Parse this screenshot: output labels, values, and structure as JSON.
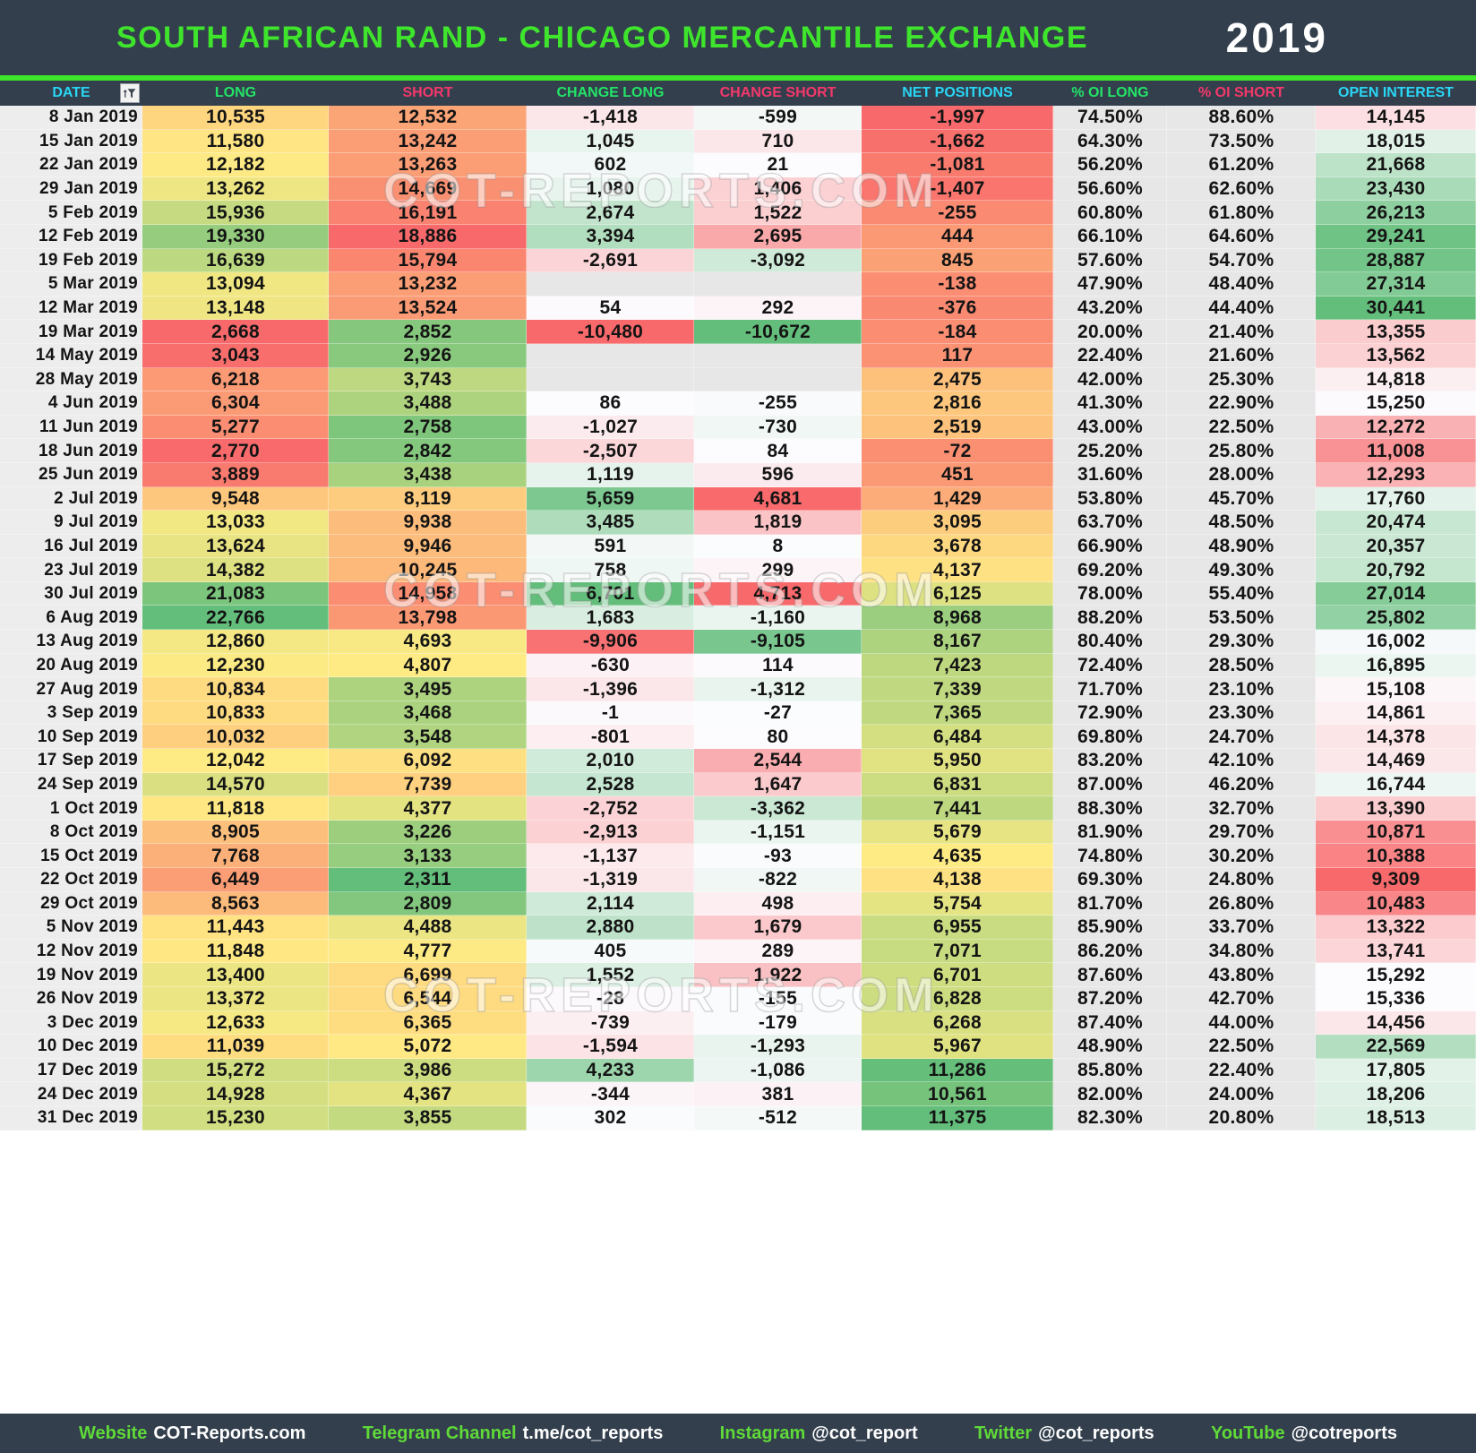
{
  "header": {
    "title": "SOUTH AFRICAN RAND - CHICAGO MERCANTILE EXCHANGE",
    "year": "2019"
  },
  "chart_data": {
    "type": "table",
    "title": "SOUTH AFRICAN RAND - CHICAGO MERCANTILE EXCHANGE",
    "year": "2019",
    "columns": [
      "DATE",
      "LONG",
      "SHORT",
      "CHANGE LONG",
      "CHANGE SHORT",
      "NET POSITIONS",
      "% OI LONG",
      "% OI SHORT",
      "OPEN INTEREST"
    ],
    "rows": [
      [
        "8 Jan 2019",
        "10,535",
        "12,532",
        "-1,418",
        "-599",
        "-1,997",
        "74.50%",
        "88.60%",
        "14,145"
      ],
      [
        "15 Jan 2019",
        "11,580",
        "13,242",
        "1,045",
        "710",
        "-1,662",
        "64.30%",
        "73.50%",
        "18,015"
      ],
      [
        "22 Jan 2019",
        "12,182",
        "13,263",
        "602",
        "21",
        "-1,081",
        "56.20%",
        "61.20%",
        "21,668"
      ],
      [
        "29 Jan 2019",
        "13,262",
        "14,669",
        "1,080",
        "1,406",
        "-1,407",
        "56.60%",
        "62.60%",
        "23,430"
      ],
      [
        "5 Feb 2019",
        "15,936",
        "16,191",
        "2,674",
        "1,522",
        "-255",
        "60.80%",
        "61.80%",
        "26,213"
      ],
      [
        "12 Feb 2019",
        "19,330",
        "18,886",
        "3,394",
        "2,695",
        "444",
        "66.10%",
        "64.60%",
        "29,241"
      ],
      [
        "19 Feb 2019",
        "16,639",
        "15,794",
        "-2,691",
        "-3,092",
        "845",
        "57.60%",
        "54.70%",
        "28,887"
      ],
      [
        "5 Mar 2019",
        "13,094",
        "13,232",
        "",
        "",
        "-138",
        "47.90%",
        "48.40%",
        "27,314"
      ],
      [
        "12 Mar 2019",
        "13,148",
        "13,524",
        "54",
        "292",
        "-376",
        "43.20%",
        "44.40%",
        "30,441"
      ],
      [
        "19 Mar 2019",
        "2,668",
        "2,852",
        "-10,480",
        "-10,672",
        "-184",
        "20.00%",
        "21.40%",
        "13,355"
      ],
      [
        "14 May 2019",
        "3,043",
        "2,926",
        "",
        "",
        "117",
        "22.40%",
        "21.60%",
        "13,562"
      ],
      [
        "28 May 2019",
        "6,218",
        "3,743",
        "",
        "",
        "2,475",
        "42.00%",
        "25.30%",
        "14,818"
      ],
      [
        "4 Jun 2019",
        "6,304",
        "3,488",
        "86",
        "-255",
        "2,816",
        "41.30%",
        "22.90%",
        "15,250"
      ],
      [
        "11 Jun 2019",
        "5,277",
        "2,758",
        "-1,027",
        "-730",
        "2,519",
        "43.00%",
        "22.50%",
        "12,272"
      ],
      [
        "18 Jun 2019",
        "2,770",
        "2,842",
        "-2,507",
        "84",
        "-72",
        "25.20%",
        "25.80%",
        "11,008"
      ],
      [
        "25 Jun 2019",
        "3,889",
        "3,438",
        "1,119",
        "596",
        "451",
        "31.60%",
        "28.00%",
        "12,293"
      ],
      [
        "2 Jul 2019",
        "9,548",
        "8,119",
        "5,659",
        "4,681",
        "1,429",
        "53.80%",
        "45.70%",
        "17,760"
      ],
      [
        "9 Jul 2019",
        "13,033",
        "9,938",
        "3,485",
        "1,819",
        "3,095",
        "63.70%",
        "48.50%",
        "20,474"
      ],
      [
        "16 Jul 2019",
        "13,624",
        "9,946",
        "591",
        "8",
        "3,678",
        "66.90%",
        "48.90%",
        "20,357"
      ],
      [
        "23 Jul 2019",
        "14,382",
        "10,245",
        "758",
        "299",
        "4,137",
        "69.20%",
        "49.30%",
        "20,792"
      ],
      [
        "30 Jul 2019",
        "21,083",
        "14,958",
        "6,701",
        "4,713",
        "6,125",
        "78.00%",
        "55.40%",
        "27,014"
      ],
      [
        "6 Aug 2019",
        "22,766",
        "13,798",
        "1,683",
        "-1,160",
        "8,968",
        "88.20%",
        "53.50%",
        "25,802"
      ],
      [
        "13 Aug 2019",
        "12,860",
        "4,693",
        "-9,906",
        "-9,105",
        "8,167",
        "80.40%",
        "29.30%",
        "16,002"
      ],
      [
        "20 Aug 2019",
        "12,230",
        "4,807",
        "-630",
        "114",
        "7,423",
        "72.40%",
        "28.50%",
        "16,895"
      ],
      [
        "27 Aug 2019",
        "10,834",
        "3,495",
        "-1,396",
        "-1,312",
        "7,339",
        "71.70%",
        "23.10%",
        "15,108"
      ],
      [
        "3 Sep 2019",
        "10,833",
        "3,468",
        "-1",
        "-27",
        "7,365",
        "72.90%",
        "23.30%",
        "14,861"
      ],
      [
        "10 Sep 2019",
        "10,032",
        "3,548",
        "-801",
        "80",
        "6,484",
        "69.80%",
        "24.70%",
        "14,378"
      ],
      [
        "17 Sep 2019",
        "12,042",
        "6,092",
        "2,010",
        "2,544",
        "5,950",
        "83.20%",
        "42.10%",
        "14,469"
      ],
      [
        "24 Sep 2019",
        "14,570",
        "7,739",
        "2,528",
        "1,647",
        "6,831",
        "87.00%",
        "46.20%",
        "16,744"
      ],
      [
        "1 Oct 2019",
        "11,818",
        "4,377",
        "-2,752",
        "-3,362",
        "7,441",
        "88.30%",
        "32.70%",
        "13,390"
      ],
      [
        "8 Oct 2019",
        "8,905",
        "3,226",
        "-2,913",
        "-1,151",
        "5,679",
        "81.90%",
        "29.70%",
        "10,871"
      ],
      [
        "15 Oct 2019",
        "7,768",
        "3,133",
        "-1,137",
        "-93",
        "4,635",
        "74.80%",
        "30.20%",
        "10,388"
      ],
      [
        "22 Oct 2019",
        "6,449",
        "2,311",
        "-1,319",
        "-822",
        "4,138",
        "69.30%",
        "24.80%",
        "9,309"
      ],
      [
        "29 Oct 2019",
        "8,563",
        "2,809",
        "2,114",
        "498",
        "5,754",
        "81.70%",
        "26.80%",
        "10,483"
      ],
      [
        "5 Nov 2019",
        "11,443",
        "4,488",
        "2,880",
        "1,679",
        "6,955",
        "85.90%",
        "33.70%",
        "13,322"
      ],
      [
        "12 Nov 2019",
        "11,848",
        "4,777",
        "405",
        "289",
        "7,071",
        "86.20%",
        "34.80%",
        "13,741"
      ],
      [
        "19 Nov 2019",
        "13,400",
        "6,699",
        "1,552",
        "1,922",
        "6,701",
        "87.60%",
        "43.80%",
        "15,292"
      ],
      [
        "26 Nov 2019",
        "13,372",
        "6,544",
        "-28",
        "-155",
        "6,828",
        "87.20%",
        "42.70%",
        "15,336"
      ],
      [
        "3 Dec 2019",
        "12,633",
        "6,365",
        "-739",
        "-179",
        "6,268",
        "87.40%",
        "44.00%",
        "14,456"
      ],
      [
        "10 Dec 2019",
        "11,039",
        "5,072",
        "-1,594",
        "-1,293",
        "5,967",
        "48.90%",
        "22.50%",
        "22,569"
      ],
      [
        "17 Dec 2019",
        "15,272",
        "3,986",
        "4,233",
        "-1,086",
        "11,286",
        "85.80%",
        "22.40%",
        "17,805"
      ],
      [
        "24 Dec 2019",
        "14,928",
        "4,367",
        "-344",
        "381",
        "10,561",
        "82.00%",
        "24.00%",
        "18,206"
      ],
      [
        "31 Dec 2019",
        "15,230",
        "3,855",
        "302",
        "-512",
        "11,375",
        "82.30%",
        "20.80%",
        "18,513"
      ]
    ],
    "legend_position": "none",
    "grid": false
  },
  "heatmap": {
    "column_keys": [
      "date",
      "long",
      "short",
      "change_long",
      "change_short",
      "net_positions",
      "oi_long_pct",
      "oi_short_pct",
      "open_interest"
    ],
    "column_scales": [
      null,
      "ryg",
      "gyr",
      "rwg",
      "gwr",
      "ryg",
      null,
      null,
      "rwg"
    ],
    "column_label_colors": [
      "cyan",
      "green",
      "pink",
      "green",
      "pink",
      "cyan",
      "green",
      "pink",
      "cyan"
    ],
    "midpoint": "median"
  },
  "watermark": {
    "text": "COT-REPORTS.COM"
  },
  "footer": {
    "items": [
      {
        "label": "Website",
        "value": "COT-Reports.com"
      },
      {
        "label": "Telegram Channel",
        "value": "t.me/cot_reports"
      },
      {
        "label": "Instagram",
        "value": "@cot_report"
      },
      {
        "label": "Twitter",
        "value": "@cot_reports"
      },
      {
        "label": "YouTube",
        "value": "@cotreports"
      }
    ]
  },
  "colors": {
    "bar_bg": "#333F4D",
    "title_green": "#3FE42C",
    "accent_line_green": "#3CE42B",
    "year_white": "#FFFFFF",
    "header_cyan": "#29D6F4",
    "header_green": "#23E467",
    "header_pink": "#F4386B",
    "cell_text": "#141414",
    "date_cell_bg": "#EDEDED",
    "pct_cell_bg": "#E8E7E7",
    "empty_cell_bg": "#E8E7E7",
    "scale_red": "#F8696B",
    "scale_yellow": "#FFEB84",
    "scale_green": "#63BE7B",
    "scale_white": "#FCFCFF",
    "footer_green": "#5FDA38",
    "footer_white": "#FFFFFF"
  }
}
